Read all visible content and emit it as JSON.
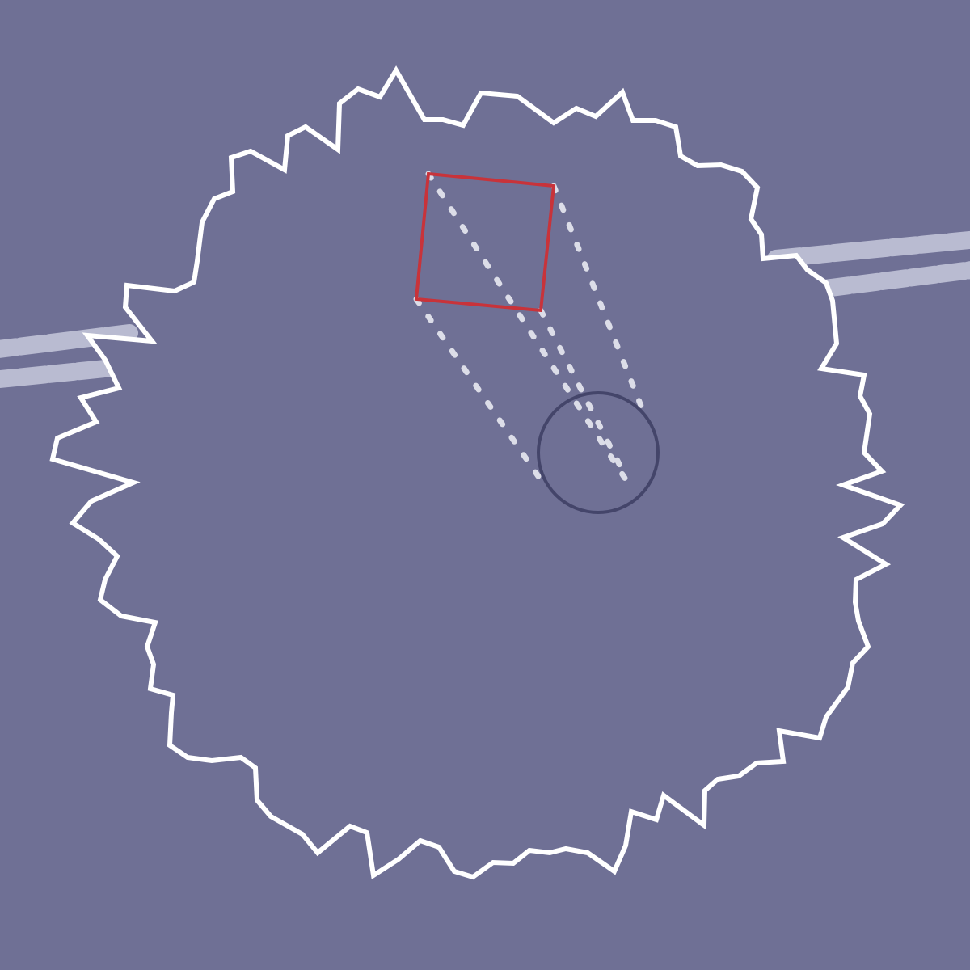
{
  "colors": {
    "background": "#6f7095",
    "arena_outline": "#ffffff",
    "track": "#b9bbd1",
    "target_frame": "#c8333a",
    "trajectory": "#dcdde8",
    "puck_outline": "#44456a"
  }
}
